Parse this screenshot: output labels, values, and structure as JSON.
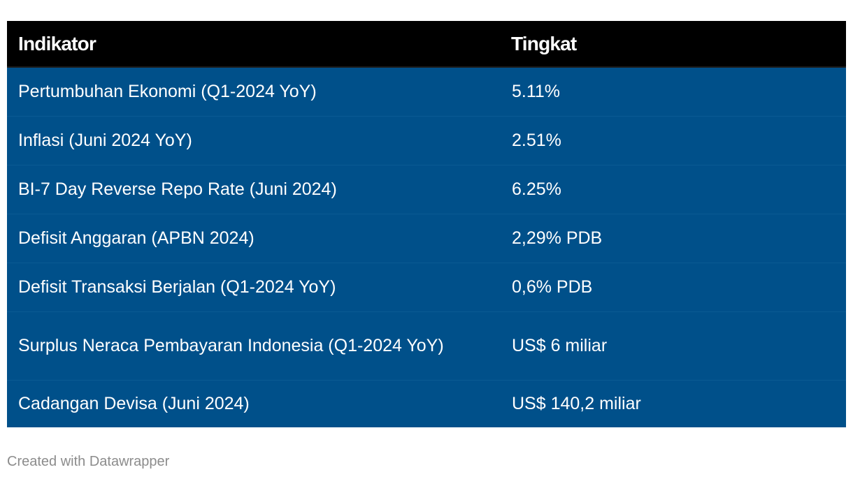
{
  "chart_data": {
    "type": "table",
    "columns": [
      "Indikator",
      "Tingkat"
    ],
    "rows": [
      {
        "indicator": "Pertumbuhan Ekonomi (Q1-2024 YoY)",
        "value": "5.11%"
      },
      {
        "indicator": "Inflasi (Juni 2024 YoY)",
        "value": "2.51%"
      },
      {
        "indicator": "BI-7 Day Reverse Repo Rate (Juni 2024)",
        "value": "6.25%"
      },
      {
        "indicator": "Defisit Anggaran (APBN 2024)",
        "value": "2,29% PDB"
      },
      {
        "indicator": "Defisit Transaksi Berjalan (Q1-2024 YoY)",
        "value": "0,6% PDB"
      },
      {
        "indicator": "Surplus Neraca Pembayaran Indonesia (Q1-2024 YoY)",
        "value": "US$ 6 miliar"
      },
      {
        "indicator": "Cadangan Devisa (Juni 2024)",
        "value": "US$ 140,2 miliar"
      }
    ]
  },
  "colors": {
    "header_bg": "#000000",
    "row_bg": "#00508a",
    "text": "#ffffff",
    "footer_text": "#8c8c8c"
  },
  "footer": {
    "credit": "Created with Datawrapper"
  }
}
